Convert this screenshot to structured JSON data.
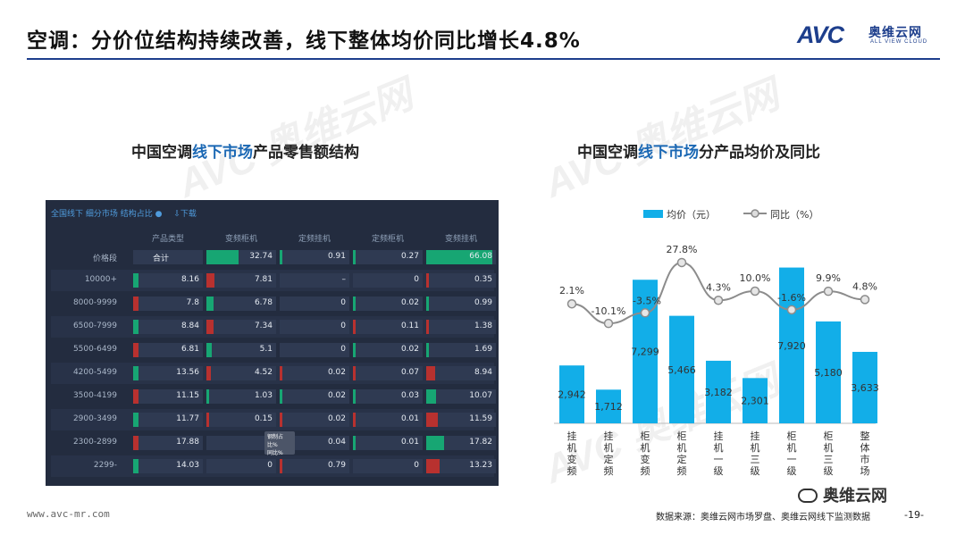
{
  "header": {
    "title": "空调：分价位结构持续改善，线下整体均价同比增长4.8%",
    "logo_text": "AVC",
    "logo_cn": "奥维云网",
    "logo_en": "ALL VIEW CLOUD"
  },
  "watermark": {
    "text": "AVC 奥维云网",
    "text_en": "ALL VIEW CLOUD"
  },
  "left_panel": {
    "title_a": "中国空调",
    "title_hl": "线下市场",
    "title_b": "产品零售额结构",
    "dash_title": "全国线下 细分市场 结构占比",
    "download": "下载",
    "columns": [
      "产品类型",
      "变频柜机",
      "定频挂机",
      "定频柜机",
      "变频挂机"
    ],
    "rows": [
      {
        "label": "价格段",
        "cells": [
          "合计",
          "32.74",
          "0.91",
          "0.27",
          "66.08"
        ]
      },
      {
        "label": "10000+",
        "cells": [
          "8.16",
          "7.81",
          "–",
          "0",
          "0.35"
        ]
      },
      {
        "label": "8000-9999",
        "cells": [
          "7.8",
          "6.78",
          "0",
          "0.02",
          "0.99"
        ]
      },
      {
        "label": "6500-7999",
        "cells": [
          "8.84",
          "7.34",
          "0",
          "0.11",
          "1.38"
        ]
      },
      {
        "label": "5500-6499",
        "cells": [
          "6.81",
          "5.1",
          "0",
          "0.02",
          "1.69"
        ]
      },
      {
        "label": "4200-5499",
        "cells": [
          "13.56",
          "4.52",
          "0.02",
          "0.07",
          "8.94"
        ]
      },
      {
        "label": "3500-4199",
        "cells": [
          "11.15",
          "1.03",
          "0.02",
          "0.03",
          "10.07"
        ]
      },
      {
        "label": "2900-3499",
        "cells": [
          "11.77",
          "0.15",
          "0.02",
          "0.01",
          "11.59"
        ]
      },
      {
        "label": "2300-2899",
        "cells": [
          "17.88",
          "0",
          "0.04",
          "0.01",
          "17.82"
        ]
      },
      {
        "label": "2299-",
        "cells": [
          "14.03",
          "0",
          "0.79",
          "0",
          "13.23"
        ]
      }
    ],
    "tooltip": "钢制占比%\n同比%",
    "colors": {
      "green": "#17a673",
      "red": "#b8312f",
      "panel": "#232c3f"
    }
  },
  "right_panel": {
    "title_a": "中国空调",
    "title_hl": "线下市场",
    "title_b": "分产品均价及同比"
  },
  "chart_data": {
    "type": "bar",
    "categories": [
      "挂机变频",
      "挂机定频",
      "柜机变频",
      "柜机定频",
      "挂机一级",
      "挂机三级",
      "柜机一级",
      "柜机三级",
      "整体市场"
    ],
    "series": [
      {
        "name": "均价（元）",
        "type": "bar",
        "color": "#12aee8",
        "values": [
          2942,
          1712,
          7299,
          5466,
          3182,
          2301,
          7920,
          5180,
          3633
        ],
        "labels": [
          "2,942",
          "1,712",
          "7,299",
          "5,466",
          "3,182",
          "2,301",
          "7,920",
          "5,180",
          "3,633"
        ]
      },
      {
        "name": "同比（%）",
        "type": "line",
        "color": "#8c8c8c",
        "values": [
          2.1,
          -10.1,
          -3.5,
          27.8,
          4.3,
          10.0,
          -1.6,
          9.9,
          4.8
        ],
        "labels": [
          "2.1%",
          "-10.1%",
          "-3.5%",
          "27.8%",
          "4.3%",
          "10.0%",
          "-1.6%",
          "9.9%",
          "4.8%"
        ]
      }
    ],
    "legend_position": "top"
  },
  "footer": {
    "url": "www.avc-mr.com",
    "source": "数据来源：奥维云网市场罗盘、奥维云网线下监测数据",
    "page": "-19-",
    "wechat": "奥维云网"
  }
}
